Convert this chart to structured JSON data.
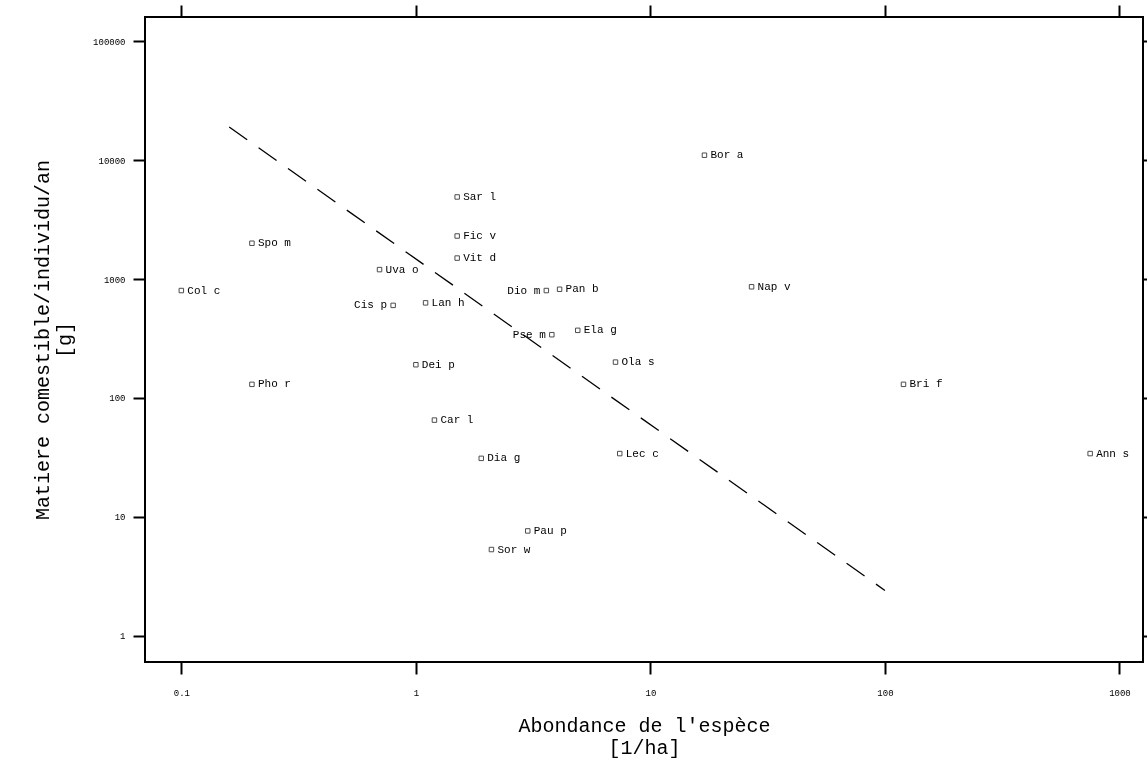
{
  "chart_data": {
    "type": "scatter",
    "xlabel": "Abondance de l'espèce\n[1/ha]",
    "ylabel": "Matiere comestible/individu/an\n[g]",
    "log": "xy",
    "xlim": [
      0.07,
      1260
    ],
    "ylim": [
      0.6,
      160000
    ],
    "xticks": [
      0.1,
      1,
      10,
      100,
      1000
    ],
    "yticks": [
      1,
      10,
      100,
      1000,
      10000,
      100000
    ],
    "series": [
      {
        "type": "scatter",
        "color": "#000000",
        "marker": "square",
        "x": [
          0.1,
          0.2,
          0.2,
          0.7,
          0.8,
          1.1,
          1.5,
          1.5,
          1.5,
          1.0,
          1.2,
          1.9,
          3.8,
          3.6,
          4.1,
          4.9,
          7.1,
          7.4,
          3.0,
          2.1,
          17,
          27,
          120,
          750
        ],
        "values": [
          800,
          2000,
          130,
          1200,
          600,
          630,
          4900,
          2300,
          1500,
          190,
          65,
          31,
          340,
          800,
          820,
          370,
          200,
          34,
          7.6,
          5.3,
          11000,
          860,
          130,
          34
        ],
        "value_labels": [
          "Col c",
          "Spo m",
          "Pho r",
          "Uva o",
          "Cis p",
          "Lan h",
          "Sar l",
          "Fic v",
          "Vit d",
          "Dei p",
          "Car l",
          "Dia g",
          "Pse m",
          "Dio m",
          "Pan b",
          "Ela g",
          "Ola s",
          "Lec c",
          "Pau p",
          "Sor w",
          "Bor a",
          "Nap v",
          "Bri f",
          "Ann s"
        ]
      },
      {
        "type": "line",
        "color": "#000000",
        "line_style": "dashed",
        "marker": "none",
        "x": [
          0.16,
          100
        ],
        "values": [
          19000,
          2.4
        ]
      }
    ]
  }
}
